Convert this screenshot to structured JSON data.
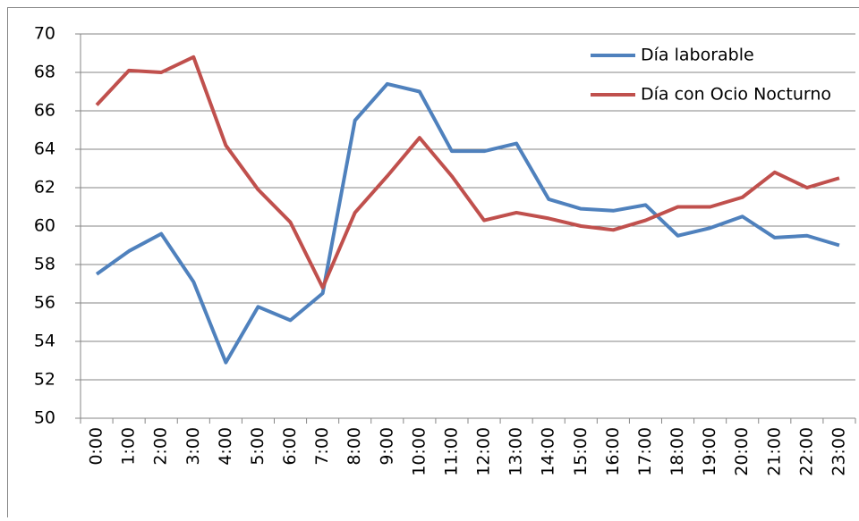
{
  "chart_data": {
    "type": "line",
    "categories": [
      "0:00",
      "1:00",
      "2:00",
      "3:00",
      "4:00",
      "5:00",
      "6:00",
      "7:00",
      "8:00",
      "9:00",
      "10:00",
      "11:00",
      "12:00",
      "13:00",
      "14:00",
      "15:00",
      "16:00",
      "17:00",
      "18:00",
      "19:00",
      "20:00",
      "21:00",
      "22:00",
      "23:00"
    ],
    "series": [
      {
        "name": "Día laborable",
        "color": "#4f81bd",
        "values": [
          57.5,
          58.7,
          59.6,
          57.1,
          52.9,
          55.8,
          55.1,
          56.5,
          65.5,
          67.4,
          67.0,
          63.9,
          63.9,
          64.3,
          61.4,
          60.9,
          60.8,
          61.1,
          59.5,
          59.9,
          60.5,
          59.4,
          59.5,
          59.0
        ]
      },
      {
        "name": "Día con Ocio Nocturno",
        "color": "#c0504d",
        "values": [
          66.3,
          68.1,
          68.0,
          68.8,
          64.2,
          61.9,
          60.2,
          56.8,
          60.7,
          62.6,
          64.6,
          62.6,
          60.3,
          60.7,
          60.4,
          60.0,
          59.8,
          60.3,
          61.0,
          61.0,
          61.5,
          62.8,
          62.0,
          62.5
        ]
      }
    ],
    "ylim": [
      50,
      70
    ],
    "yticks": [
      50,
      52,
      54,
      56,
      58,
      60,
      62,
      64,
      66,
      68,
      70
    ],
    "grid": true,
    "legend": "top-right"
  }
}
